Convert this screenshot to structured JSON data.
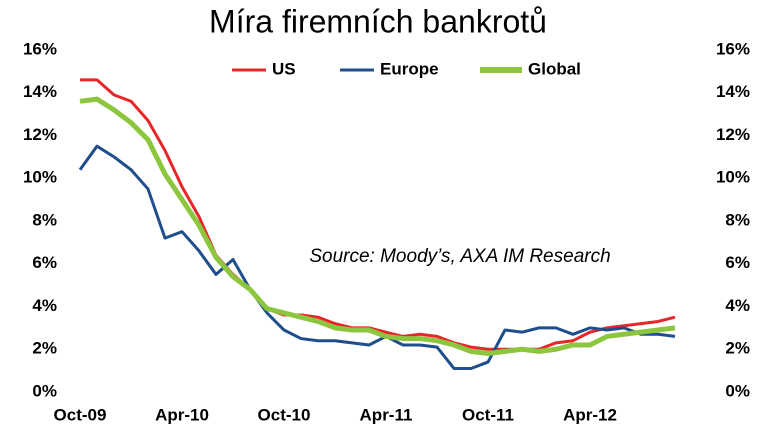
{
  "chart_data": {
    "type": "line",
    "title": "Míra firemních bankrotů",
    "annotation": "Source: Moody’s, AXA IM Research",
    "categories": [
      "Oct-09",
      null,
      null,
      null,
      null,
      null,
      "Apr-10",
      null,
      null,
      null,
      null,
      null,
      "Oct-10",
      null,
      null,
      null,
      null,
      null,
      "Apr-11",
      null,
      null,
      null,
      null,
      null,
      "Oct-11",
      null,
      null,
      null,
      null,
      null,
      "Apr-12",
      null,
      null,
      null,
      null,
      null
    ],
    "series": [
      {
        "name": "US",
        "color": "#e8262a",
        "values": [
          14.6,
          14.6,
          13.9,
          13.6,
          12.7,
          11.3,
          9.6,
          8.2,
          6.4,
          5.5,
          4.8,
          3.9,
          3.6,
          3.6,
          3.5,
          3.2,
          3.0,
          3.0,
          2.8,
          2.6,
          2.7,
          2.6,
          2.3,
          2.1,
          2.0,
          2.0,
          2.0,
          2.0,
          2.3,
          2.4,
          2.8,
          3.0,
          3.1,
          3.2,
          3.3,
          3.5
        ]
      },
      {
        "name": "Europe",
        "color": "#1f4e8c",
        "values": [
          10.4,
          11.5,
          11.0,
          10.4,
          9.5,
          7.2,
          7.5,
          6.6,
          5.5,
          6.2,
          4.8,
          3.7,
          2.9,
          2.5,
          2.4,
          2.4,
          2.3,
          2.2,
          2.6,
          2.2,
          2.2,
          2.1,
          1.1,
          1.1,
          1.4,
          2.9,
          2.8,
          3.0,
          3.0,
          2.7,
          3.0,
          2.9,
          3.0,
          2.7,
          2.7,
          2.6
        ]
      },
      {
        "name": "Global",
        "color": "#8cc63e",
        "values": [
          13.6,
          13.7,
          13.2,
          12.6,
          11.8,
          10.2,
          9.0,
          7.8,
          6.3,
          5.4,
          4.8,
          3.9,
          3.7,
          3.5,
          3.3,
          3.0,
          2.9,
          2.9,
          2.6,
          2.5,
          2.5,
          2.4,
          2.2,
          1.9,
          1.8,
          1.9,
          2.0,
          1.9,
          2.0,
          2.2,
          2.2,
          2.6,
          2.7,
          2.8,
          2.9,
          3.0
        ]
      }
    ],
    "ylim": [
      0,
      16
    ],
    "yticks": [
      {
        "value": 0,
        "label": "0%"
      },
      {
        "value": 2,
        "label": "2%"
      },
      {
        "value": 4,
        "label": "4%"
      },
      {
        "value": 6,
        "label": "6%"
      },
      {
        "value": 8,
        "label": "8%"
      },
      {
        "value": 10,
        "label": "10%"
      },
      {
        "value": 12,
        "label": "12%"
      },
      {
        "value": 14,
        "label": "14%"
      },
      {
        "value": 16,
        "label": "16%"
      }
    ],
    "y2lim": [
      0,
      16
    ],
    "y2ticks": [
      {
        "value": 0,
        "label": "0%"
      },
      {
        "value": 2,
        "label": "2%"
      },
      {
        "value": 4,
        "label": "4%"
      },
      {
        "value": 6,
        "label": "6%"
      },
      {
        "value": 8,
        "label": "8%"
      },
      {
        "value": 10,
        "label": "10%"
      },
      {
        "value": 12,
        "label": "12%"
      },
      {
        "value": 14,
        "label": "14%"
      },
      {
        "value": 16,
        "label": "16%"
      }
    ],
    "grid": false,
    "legend": "top"
  }
}
